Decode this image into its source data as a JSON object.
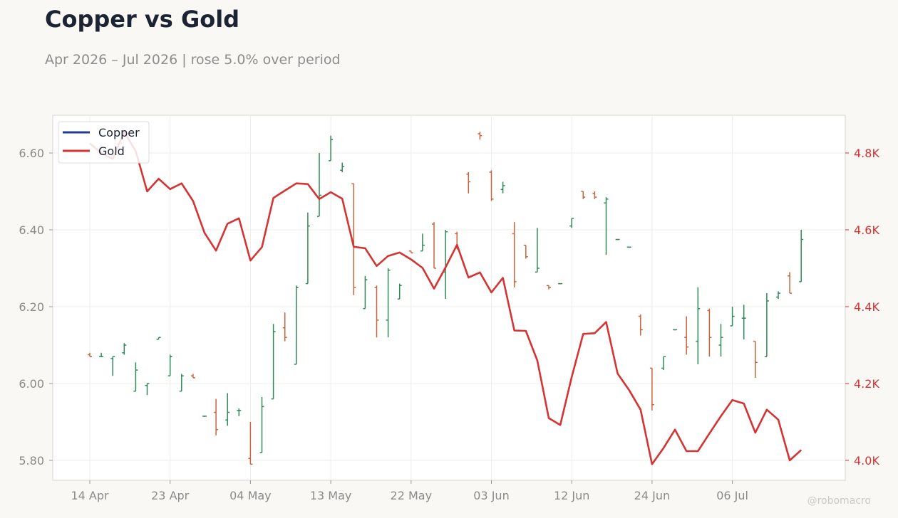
{
  "header": {
    "title": "Copper vs Gold",
    "subtitle": "Apr 2026 – Jul 2026 | rose 5.0% over period"
  },
  "watermark": "@robomacro",
  "chart_data": {
    "type": "line",
    "title": "Copper vs Gold",
    "subtitle": "Apr 2026 – Jul 2026 | rose 5.0% over period",
    "x_ticks": [
      "14 Apr",
      "23 Apr",
      "04 May",
      "13 May",
      "22 May",
      "03 Jun",
      "12 Jun",
      "24 Jun",
      "06 Jul"
    ],
    "y_left": {
      "range": [
        5.75,
        6.7
      ],
      "ticks": [
        "5.80",
        "6.00",
        "6.20",
        "6.40",
        "6.60"
      ]
    },
    "y_right": {
      "range": [
        3.95,
        4.9
      ],
      "ticks": [
        "4.0K",
        "4.2K",
        "4.4K",
        "4.6K",
        "4.8K"
      ]
    },
    "grid": true,
    "legend": {
      "placement": "top-left",
      "entries": [
        "Copper",
        "Gold"
      ]
    },
    "colors": {
      "copper_line": "#253b8f",
      "gold_line": "#d63333",
      "up_bar": "#2e8b57",
      "down_bar": "#c8643c",
      "right_axis": "#d23232"
    },
    "series": [
      {
        "name": "Copper",
        "axis": "left",
        "chart_type": "ohlc",
        "ohlc": [
          [
            6.075,
            6.08,
            6.07,
            6.07
          ],
          [
            6.07,
            6.08,
            6.07,
            6.07
          ],
          [
            6.065,
            6.07,
            6.02,
            6.07
          ],
          [
            6.08,
            6.105,
            6.075,
            6.1
          ],
          [
            5.98,
            6.055,
            5.98,
            6.035
          ],
          [
            5.995,
            6.0,
            5.97,
            6.0
          ],
          [
            6.115,
            6.12,
            6.115,
            6.12
          ],
          [
            6.02,
            6.075,
            6.02,
            6.07
          ],
          [
            5.98,
            6.025,
            5.98,
            6.02
          ],
          [
            6.02,
            6.025,
            6.015,
            6.015
          ],
          [
            5.915,
            5.915,
            5.915,
            5.915
          ],
          [
            5.925,
            5.96,
            5.865,
            5.88
          ],
          [
            5.905,
            5.975,
            5.89,
            5.925
          ],
          [
            5.93,
            5.935,
            5.915,
            5.93
          ],
          [
            5.805,
            5.9,
            5.79,
            5.79
          ],
          [
            5.82,
            5.965,
            5.82,
            5.94
          ],
          [
            5.96,
            6.155,
            5.96,
            6.135
          ],
          [
            6.145,
            6.185,
            6.11,
            6.12
          ],
          [
            6.05,
            6.255,
            6.05,
            6.25
          ],
          [
            6.26,
            6.445,
            6.26,
            6.41
          ],
          [
            6.435,
            6.6,
            6.435,
            6.49
          ],
          [
            6.58,
            6.645,
            6.58,
            6.635
          ],
          [
            6.555,
            6.575,
            6.55,
            6.565
          ],
          [
            6.52,
            6.52,
            6.23,
            6.25
          ],
          [
            6.195,
            6.28,
            6.195,
            6.27
          ],
          [
            6.25,
            6.255,
            6.12,
            6.165
          ],
          [
            6.165,
            6.3,
            6.12,
            6.295
          ],
          [
            6.22,
            6.26,
            6.22,
            6.255
          ],
          [
            6.345,
            6.345,
            6.34,
            6.34
          ],
          [
            6.345,
            6.39,
            6.345,
            6.36
          ],
          [
            6.415,
            6.42,
            6.3,
            6.3
          ],
          [
            6.29,
            6.4,
            6.22,
            6.395
          ],
          [
            6.39,
            6.395,
            6.35,
            6.35
          ],
          [
            6.545,
            6.55,
            6.495,
            6.525
          ],
          [
            6.65,
            6.655,
            6.635,
            6.645
          ],
          [
            6.55,
            6.555,
            6.475,
            6.48
          ],
          [
            6.505,
            6.525,
            6.495,
            6.515
          ],
          [
            6.39,
            6.42,
            6.25,
            6.265
          ],
          [
            6.36,
            6.36,
            6.325,
            6.33
          ],
          [
            6.29,
            6.405,
            6.29,
            6.3
          ],
          [
            6.255,
            6.255,
            6.245,
            6.25
          ],
          [
            6.26,
            6.26,
            6.26,
            6.26
          ],
          [
            6.41,
            6.43,
            6.405,
            6.43
          ],
          [
            6.5,
            6.5,
            6.48,
            6.485
          ],
          [
            6.495,
            6.5,
            6.48,
            6.485
          ],
          [
            6.47,
            6.485,
            6.335,
            6.48
          ],
          [
            6.375,
            6.375,
            6.375,
            6.375
          ],
          [
            6.355,
            6.355,
            6.355,
            6.355
          ],
          [
            6.175,
            6.18,
            6.125,
            6.14
          ],
          [
            6.04,
            6.04,
            5.93,
            5.945
          ],
          [
            6.04,
            6.07,
            6.035,
            6.07
          ],
          [
            6.14,
            6.14,
            6.14,
            6.14
          ],
          [
            6.12,
            6.175,
            6.075,
            6.095
          ],
          [
            6.11,
            6.25,
            6.05,
            6.195
          ],
          [
            6.19,
            6.195,
            6.07,
            6.12
          ],
          [
            6.1,
            6.155,
            6.07,
            6.12
          ],
          [
            6.15,
            6.2,
            6.15,
            6.175
          ],
          [
            6.17,
            6.205,
            6.115,
            6.17
          ],
          [
            6.11,
            6.11,
            6.015,
            6.055
          ],
          [
            6.07,
            6.235,
            6.07,
            6.215
          ],
          [
            6.225,
            6.24,
            6.22,
            6.235
          ],
          [
            6.28,
            6.29,
            6.235,
            6.235
          ],
          [
            6.265,
            6.4,
            6.265,
            6.375
          ]
        ]
      },
      {
        "name": "Gold",
        "axis": "right",
        "chart_type": "line",
        "values": [
          4.825,
          4.8,
          4.785,
          4.855,
          4.805,
          4.7,
          4.733,
          4.706,
          4.721,
          4.675,
          4.592,
          4.546,
          4.616,
          4.63,
          4.52,
          4.555,
          4.683,
          4.702,
          4.721,
          4.719,
          4.68,
          4.698,
          4.681,
          4.556,
          4.552,
          4.506,
          4.532,
          4.541,
          4.523,
          4.501,
          4.447,
          4.502,
          4.561,
          4.476,
          4.489,
          4.437,
          4.475,
          4.338,
          4.337,
          4.26,
          4.11,
          4.092,
          4.217,
          4.329,
          4.331,
          4.36,
          4.226,
          4.183,
          4.132,
          3.99,
          4.032,
          4.08,
          4.024,
          4.024,
          4.07,
          4.115,
          4.157,
          4.148,
          4.072,
          4.132,
          4.106,
          4.0,
          4.027
        ]
      }
    ]
  }
}
